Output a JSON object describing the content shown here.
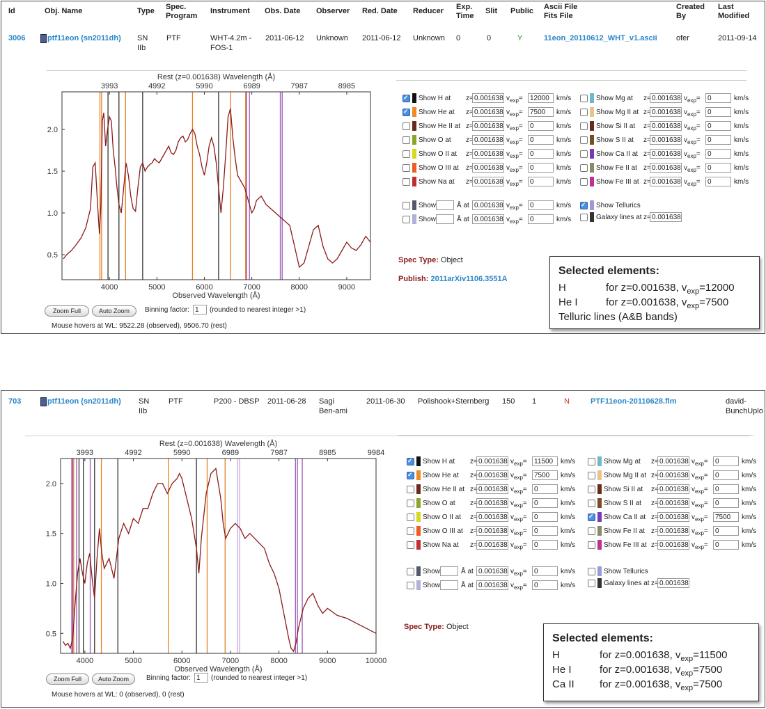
{
  "headers1": [
    "Id",
    "Obj. Name",
    "Type",
    "Spec.",
    "Program",
    "Instrument",
    "Obs. Date",
    "Observer",
    "Red. Date",
    "Reducer",
    "Exp.",
    "Time",
    "Slit",
    "Public",
    "Ascii File",
    "Fits File",
    "Created",
    "By",
    "Last",
    "Modified"
  ],
  "row1": {
    "id": "3006",
    "obj_name": "ptf11eon (sn2011dh)",
    "type1": "SN",
    "type2": "IIb",
    "program": "PTF",
    "instrument1": "WHT-4.2m -",
    "instrument2": "FOS-1",
    "obs_date": "2011-06-12",
    "observer": "Unknown",
    "red_date": "2011-06-12",
    "reducer": "Unknown",
    "exp_time": "0",
    "slit": "0",
    "public": "Y",
    "ascii_file": "11eon_20110612_WHT_v1.ascii",
    "created_by": "ofer",
    "last_modified": "2011-09-14"
  },
  "row2": {
    "id": "703",
    "obj_name": "ptf11eon (sn2011dh)",
    "type1": "SN",
    "type2": "IIb",
    "program": "PTF",
    "instrument": "P200 - DBSP",
    "obs_date": "2011-06-28",
    "observer1": "Sagi",
    "observer2": "Ben-ami",
    "red_date": "2011-06-30",
    "reducer": "Polishook+Sternberg",
    "exp_time": "150",
    "slit": "1",
    "public": "N",
    "ascii_file": "PTF11eon-20110628.flm",
    "created_by1": "david-",
    "created_by2": "BunchUplo"
  },
  "chart_data": [
    {
      "type": "line",
      "top_axis_label": "Rest (z=0.001638) Wavelength (Å)",
      "xlabel": "Observed Wavelength (Å)",
      "xlim": [
        3000,
        9500
      ],
      "ylim": [
        0.2,
        2.45
      ],
      "x_ticks": [
        "4000",
        "5000",
        "6000",
        "7000",
        "8000",
        "9000"
      ],
      "x_tick_values": [
        4000,
        5000,
        6000,
        7000,
        8000,
        9000
      ],
      "y_ticks": [
        "0.5",
        "1.0",
        "1.5",
        "2.0"
      ],
      "y_tick_values": [
        0.5,
        1.0,
        1.5,
        2.0
      ],
      "top_ticks": [
        "3993",
        "4992",
        "5990",
        "6989",
        "7987",
        "8985"
      ],
      "top_tick_values": [
        4000,
        5000,
        6000,
        7000,
        8000,
        9000
      ],
      "series": [
        {
          "color": "#8b1a1a",
          "x": [
            3030,
            3100,
            3200,
            3300,
            3400,
            3500,
            3600,
            3650,
            3700,
            3750,
            3790,
            3820,
            3850,
            3880,
            3920,
            3960,
            4000,
            4040,
            4080,
            4120,
            4150,
            4200,
            4250,
            4300,
            4350,
            4400,
            4450,
            4500,
            4550,
            4600,
            4650,
            4700,
            4750,
            4800,
            4850,
            4900,
            4950,
            5000,
            5050,
            5100,
            5150,
            5200,
            5250,
            5300,
            5350,
            5400,
            5450,
            5500,
            5550,
            5600,
            5650,
            5700,
            5750,
            5800,
            5850,
            5900,
            5950,
            6000,
            6050,
            6100,
            6150,
            6200,
            6250,
            6300,
            6350,
            6400,
            6450,
            6500,
            6550,
            6600,
            6650,
            6700,
            6750,
            6800,
            6850,
            6900,
            6950,
            7000,
            7050,
            7100,
            7200,
            7300,
            7400,
            7500,
            7600,
            7700,
            7800,
            7900,
            8000,
            8100,
            8200,
            8300,
            8400,
            8500,
            8600,
            8700,
            8800,
            8900,
            9000,
            9100,
            9200,
            9300,
            9400,
            9500
          ],
          "y": [
            0.45,
            0.5,
            0.55,
            0.62,
            0.7,
            0.82,
            1.05,
            1.55,
            1.6,
            1.1,
            0.75,
            1.1,
            2.1,
            2.2,
            1.8,
            2.0,
            2.15,
            2.1,
            1.75,
            1.55,
            1.35,
            1.1,
            1.0,
            1.3,
            1.6,
            1.45,
            1.2,
            1.05,
            1.02,
            1.3,
            1.55,
            1.6,
            1.5,
            1.55,
            1.58,
            1.6,
            1.65,
            1.62,
            1.6,
            1.65,
            1.7,
            1.75,
            1.8,
            1.72,
            1.7,
            1.75,
            1.85,
            1.9,
            1.92,
            1.85,
            1.88,
            1.95,
            2.0,
            1.95,
            1.8,
            1.7,
            1.55,
            1.45,
            1.6,
            1.8,
            1.9,
            1.8,
            1.6,
            1.3,
            1.0,
            1.3,
            1.7,
            2.15,
            2.25,
            1.9,
            1.65,
            1.45,
            1.4,
            1.35,
            1.3,
            1.2,
            1.1,
            1.0,
            1.05,
            1.15,
            1.2,
            1.1,
            1.05,
            1.0,
            0.95,
            0.9,
            0.85,
            0.6,
            0.35,
            0.4,
            0.6,
            0.8,
            0.85,
            0.6,
            0.45,
            0.4,
            0.45,
            0.55,
            0.65,
            0.58,
            0.55,
            0.62,
            0.72,
            0.65
          ]
        }
      ],
      "lines": [
        {
          "x": 3800,
          "color": "#e67e22"
        },
        {
          "x": 3835,
          "color": "#e67e22"
        },
        {
          "x": 3970,
          "color": "#333"
        },
        {
          "x": 4200,
          "color": "#333"
        },
        {
          "x": 4340,
          "color": "#e67e22"
        },
        {
          "x": 4700,
          "color": "#333"
        },
        {
          "x": 5750,
          "color": "#e67e22"
        },
        {
          "x": 6300,
          "color": "#333"
        },
        {
          "x": 6550,
          "color": "#e67e22"
        },
        {
          "x": 6870,
          "color": "#e67e22"
        },
        {
          "x": 6890,
          "color": "#9b59b6"
        },
        {
          "x": 6950,
          "color": "#9b59b6"
        },
        {
          "x": 7600,
          "color": "#9b59b6"
        },
        {
          "x": 7640,
          "color": "#9b59b6"
        }
      ]
    },
    {
      "type": "line",
      "top_axis_label": "Rest (z=0.001638) Wavelength (Å)",
      "xlabel": "Observed Wavelength (Å)",
      "xlim": [
        3500,
        10000
      ],
      "ylim": [
        0.3,
        2.25
      ],
      "x_ticks": [
        "4000",
        "5000",
        "6000",
        "7000",
        "8000",
        "9000",
        "10000"
      ],
      "x_tick_values": [
        4000,
        5000,
        6000,
        7000,
        8000,
        9000,
        10000
      ],
      "y_ticks": [
        "0.5",
        "1.0",
        "1.5",
        "2.0"
      ],
      "y_tick_values": [
        0.5,
        1.0,
        1.5,
        2.0
      ],
      "top_ticks": [
        "3993",
        "4992",
        "5990",
        "6989",
        "7987",
        "8985",
        "9984"
      ],
      "top_tick_values": [
        4000,
        5000,
        6000,
        7000,
        8000,
        9000,
        10000
      ],
      "series": [
        {
          "color": "#8b1a1a",
          "x": [
            3550,
            3600,
            3650,
            3700,
            3750,
            3800,
            3850,
            3900,
            3950,
            4000,
            4050,
            4100,
            4150,
            4200,
            4250,
            4300,
            4350,
            4400,
            4450,
            4500,
            4600,
            4700,
            4800,
            4900,
            5000,
            5100,
            5200,
            5300,
            5400,
            5500,
            5600,
            5700,
            5800,
            5900,
            5950,
            6000,
            6100,
            6200,
            6300,
            6350,
            6400,
            6500,
            6600,
            6700,
            6750,
            6800,
            6850,
            6900,
            7000,
            7100,
            7200,
            7300,
            7400,
            7500,
            7600,
            7700,
            7800,
            7900,
            8000,
            8100,
            8200,
            8250,
            8300,
            8350,
            8400,
            8500,
            8600,
            8700,
            8800,
            8900,
            9000,
            9200,
            9400,
            9600,
            9800,
            10000
          ],
          "y": [
            0.42,
            0.38,
            0.4,
            0.35,
            0.45,
            0.8,
            1.1,
            1.25,
            1.1,
            1.0,
            1.2,
            1.3,
            1.05,
            0.85,
            1.25,
            1.55,
            1.3,
            1.15,
            1.2,
            1.25,
            1.05,
            1.45,
            1.6,
            1.5,
            1.65,
            1.6,
            1.75,
            1.75,
            1.9,
            2.0,
            2.0,
            1.9,
            2.0,
            2.05,
            2.1,
            2.05,
            1.85,
            1.65,
            1.35,
            1.1,
            1.45,
            1.9,
            2.1,
            2.15,
            2.0,
            1.85,
            1.6,
            1.45,
            1.55,
            1.6,
            1.55,
            1.45,
            1.5,
            1.45,
            1.4,
            1.35,
            1.2,
            1.1,
            0.95,
            0.7,
            0.45,
            0.35,
            0.32,
            0.4,
            0.55,
            0.75,
            0.85,
            0.9,
            0.78,
            0.7,
            0.75,
            0.68,
            0.65,
            0.6,
            0.55,
            0.5
          ]
        }
      ],
      "lines": [
        {
          "x": 3730,
          "color": "#9b59b6"
        },
        {
          "x": 3750,
          "color": "#9b59b6"
        },
        {
          "x": 3770,
          "color": "#e67e22"
        },
        {
          "x": 3830,
          "color": "#9b59b6"
        },
        {
          "x": 3880,
          "color": "#333"
        },
        {
          "x": 3970,
          "color": "#333"
        },
        {
          "x": 4110,
          "color": "#9b59b6"
        },
        {
          "x": 4200,
          "color": "#333"
        },
        {
          "x": 4340,
          "color": "#e67e22"
        },
        {
          "x": 4680,
          "color": "#333"
        },
        {
          "x": 5720,
          "color": "#e67e22"
        },
        {
          "x": 6300,
          "color": "#333"
        },
        {
          "x": 6520,
          "color": "#e67e22"
        },
        {
          "x": 6890,
          "color": "#e67e22"
        },
        {
          "x": 7150,
          "color": "#c9a6e8"
        },
        {
          "x": 7190,
          "color": "#c9a6e8"
        },
        {
          "x": 8340,
          "color": "#9b59b6"
        },
        {
          "x": 8380,
          "color": "#9b59b6"
        },
        {
          "x": 8480,
          "color": "#9b59b6"
        }
      ]
    }
  ],
  "controls": {
    "zoom_full": "Zoom Full",
    "auto_zoom": "Auto Zoom",
    "binning_label": "Binning factor:",
    "binning_value": "1",
    "binning_note": "(rounded to nearest integer >1)",
    "mouse1": "Mouse hovers at WL: 9522.28 (observed), 9506.70 (rest)",
    "mouse2": "Mouse hovers at WL: 0 (observed), 0 (rest)"
  },
  "elements1_left": [
    {
      "label": "Show H at",
      "color": "#111",
      "checked": true,
      "z": "0.001638",
      "v": "12000"
    },
    {
      "label": "Show He at",
      "color": "#f08a24",
      "checked": true,
      "z": "0.001638",
      "v": "7500"
    },
    {
      "label": "Show He II at",
      "color": "#6b2a1a",
      "checked": false,
      "z": "0.001638",
      "v": "0"
    },
    {
      "label": "Show O at",
      "color": "#8aa52a",
      "checked": false,
      "z": "0.001638",
      "v": "0"
    },
    {
      "label": "Show O II at",
      "color": "#d8d820",
      "checked": false,
      "z": "0.001638",
      "v": "0"
    },
    {
      "label": "Show O III at",
      "color": "#f05a24",
      "checked": false,
      "z": "0.001638",
      "v": "0"
    },
    {
      "label": "Show Na at",
      "color": "#c03030",
      "checked": false,
      "z": "0.001638",
      "v": "0"
    }
  ],
  "elements1_right": [
    {
      "label": "Show Mg at",
      "color": "#6fb8c8",
      "checked": false,
      "z": "0.001638",
      "v": "0"
    },
    {
      "label": "Show Mg II at",
      "color": "#e8c48a",
      "checked": false,
      "z": "0.001638",
      "v": "0"
    },
    {
      "label": "Show Si II at",
      "color": "#6b2a1a",
      "checked": false,
      "z": "0.001638",
      "v": "0"
    },
    {
      "label": "Show S II at",
      "color": "#7a4a2a",
      "checked": false,
      "z": "0.001638",
      "v": "0"
    },
    {
      "label": "Show Ca II at",
      "color": "#7a3ab8",
      "checked": false,
      "z": "0.001638",
      "v": "0"
    },
    {
      "label": "Show Fe II at",
      "color": "#8a8a6a",
      "checked": false,
      "z": "0.001638",
      "v": "0"
    },
    {
      "label": "Show Fe III at",
      "color": "#c03090",
      "checked": false,
      "z": "0.001638",
      "v": "0"
    }
  ],
  "elements2_left": [
    {
      "label": "Show H at",
      "color": "#111",
      "checked": true,
      "z": "0.001638",
      "v": "11500"
    },
    {
      "label": "Show He at",
      "color": "#f08a24",
      "checked": true,
      "z": "0.001638",
      "v": "7500"
    },
    {
      "label": "Show He II at",
      "color": "#6b2a1a",
      "checked": false,
      "z": "0.001638",
      "v": "0"
    },
    {
      "label": "Show O at",
      "color": "#8aa52a",
      "checked": false,
      "z": "0.001638",
      "v": "0"
    },
    {
      "label": "Show O II at",
      "color": "#d8d820",
      "checked": false,
      "z": "0.001638",
      "v": "0"
    },
    {
      "label": "Show O III at",
      "color": "#f05a24",
      "checked": false,
      "z": "0.001638",
      "v": "0"
    },
    {
      "label": "Show Na at",
      "color": "#c03030",
      "checked": false,
      "z": "0.001638",
      "v": "0"
    }
  ],
  "elements2_right": [
    {
      "label": "Show Mg at",
      "color": "#6fb8c8",
      "checked": false,
      "z": "0.001638",
      "v": "0"
    },
    {
      "label": "Show Mg II at",
      "color": "#e8c48a",
      "checked": false,
      "z": "0.001638",
      "v": "0"
    },
    {
      "label": "Show Si II at",
      "color": "#6b2a1a",
      "checked": false,
      "z": "0.001638",
      "v": "0"
    },
    {
      "label": "Show S II at",
      "color": "#7a4a2a",
      "checked": false,
      "z": "0.001638",
      "v": "0"
    },
    {
      "label": "Show Ca II at",
      "color": "#7a3ab8",
      "checked": true,
      "z": "0.001638",
      "v": "7500"
    },
    {
      "label": "Show Fe II at",
      "color": "#8a8a6a",
      "checked": false,
      "z": "0.001638",
      "v": "0"
    },
    {
      "label": "Show Fe III at",
      "color": "#c03090",
      "checked": false,
      "z": "0.001638",
      "v": "0"
    }
  ],
  "custom": {
    "show": "Show",
    "a_at": "Å at",
    "z_label": "z=",
    "z": "0.001638",
    "v": "0",
    "kms": "km/s",
    "colors": [
      "#555a6a",
      "#b0b0d8"
    ]
  },
  "tellurics1": {
    "label": "Show Tellurics",
    "checked": true,
    "color": "#9a9ad8"
  },
  "tellurics2": {
    "label": "Show Tellurics",
    "checked": false,
    "color": "#9a9ad8"
  },
  "galaxy": {
    "label": "Galaxy lines at",
    "z": "0.001638",
    "color": "#333"
  },
  "spec_type_label": "Spec Type:",
  "spec_type": "Object",
  "publish_label": "Publish:",
  "publish": "2011arXiv1106.3551A",
  "sel_title": "Selected elements:",
  "sel1": [
    {
      "el": "H",
      "z": "for z=0.001638, v",
      "sub": "exp",
      "v": "=12000"
    },
    {
      "el": "He I",
      "z": "for z=0.001638, v",
      "sub": "exp",
      "v": "=7500"
    }
  ],
  "sel1_extra": "Telluric lines (A&B bands)",
  "sel2": [
    {
      "el": "H",
      "z": "for z=0.001638, v",
      "sub": "exp",
      "v": "=11500"
    },
    {
      "el": "He I",
      "z": "for z=0.001638, v",
      "sub": "exp",
      "v": "=7500"
    },
    {
      "el": "Ca II",
      "z": "for z=0.001638, v",
      "sub": "exp",
      "v": "=7500"
    }
  ],
  "labels": {
    "z": "z=",
    "v": "v",
    "vsub": "exp",
    "veq": "=",
    "kms": "km/s"
  }
}
